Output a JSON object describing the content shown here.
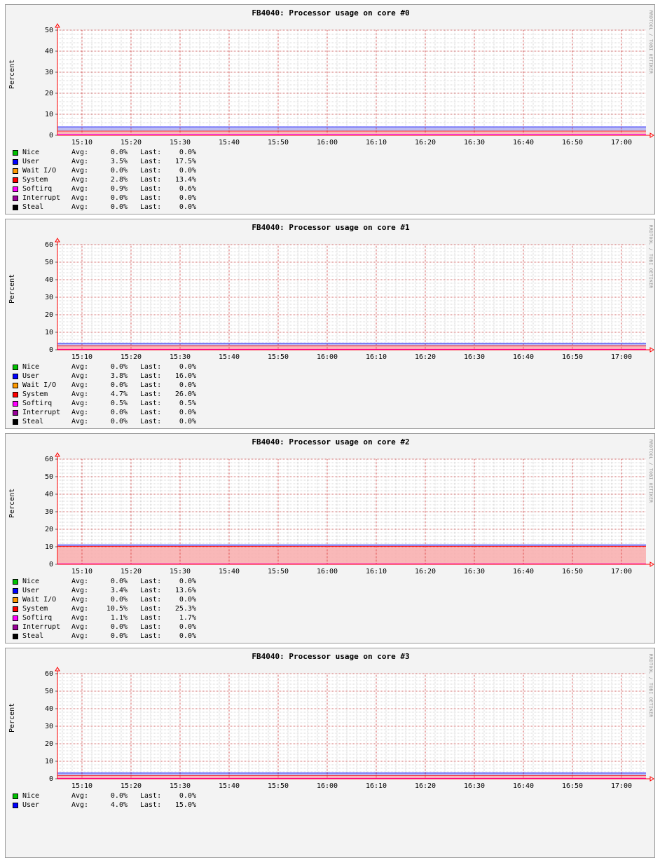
{
  "chart_data": [
    {
      "type": "area",
      "title": "FB4040: Processor usage on core #0",
      "ylabel": "Percent",
      "watermark": "RRDTOOL / TOBI OETIKER",
      "ylim": [
        0,
        50
      ],
      "yticks": [
        0,
        10,
        20,
        30,
        40,
        50
      ],
      "xticks": [
        "15:10",
        "15:20",
        "15:30",
        "15:40",
        "15:50",
        "16:00",
        "16:10",
        "16:20",
        "16:30",
        "16:40",
        "16:50",
        "17:00"
      ],
      "xrange_minutes": [
        905,
        1025
      ],
      "grid": true,
      "stacked_series": [
        "Softirq",
        "System",
        "User"
      ],
      "profiles": {
        "softirq": [
          [
            905,
            0.5
          ],
          [
            1020,
            0.5
          ],
          [
            1025,
            0.5
          ]
        ],
        "system": [
          [
            905,
            1.5
          ],
          [
            1020,
            1.5
          ],
          [
            1025,
            1.5
          ]
        ],
        "user": [
          [
            905,
            2
          ],
          [
            1020,
            2
          ],
          [
            1025,
            2
          ]
        ]
      },
      "series": [
        {
          "name": "Nice",
          "color": "#00c000",
          "avg": "0.0%",
          "last": "0.0%"
        },
        {
          "name": "User",
          "color": "#0000ff",
          "avg": "3.5%",
          "last": "17.5%"
        },
        {
          "name": "Wait I/O",
          "color": "#ff9900",
          "avg": "0.0%",
          "last": "0.0%"
        },
        {
          "name": "System",
          "color": "#ff0000",
          "avg": "2.8%",
          "last": "13.4%"
        },
        {
          "name": "Softirq",
          "color": "#ff00ff",
          "avg": "0.9%",
          "last": "0.6%"
        },
        {
          "name": "Interrupt",
          "color": "#990099",
          "avg": "0.0%",
          "last": "0.0%"
        },
        {
          "name": "Steal",
          "color": "#000000",
          "avg": "0.0%",
          "last": "0.0%"
        }
      ]
    },
    {
      "type": "area",
      "title": "FB4040: Processor usage on core #1",
      "ylabel": "Percent",
      "watermark": "RRDTOOL / TOBI OETIKER",
      "ylim": [
        0,
        60
      ],
      "yticks": [
        0,
        10,
        20,
        30,
        40,
        50,
        60
      ],
      "xticks": [
        "15:10",
        "15:20",
        "15:30",
        "15:40",
        "15:50",
        "16:00",
        "16:10",
        "16:20",
        "16:30",
        "16:40",
        "16:50",
        "17:00"
      ],
      "xrange_minutes": [
        905,
        1025
      ],
      "grid": true,
      "stacked_series": [
        "Softirq",
        "System",
        "User"
      ],
      "profiles": {
        "softirq": [
          [
            905,
            0.3
          ],
          [
            1020,
            0.3
          ],
          [
            1025,
            0.3
          ]
        ],
        "system": [
          [
            905,
            2
          ],
          [
            1020,
            2
          ],
          [
            1025,
            2
          ]
        ],
        "user": [
          [
            905,
            1.5
          ],
          [
            1020,
            1.5
          ],
          [
            1025,
            1.5
          ]
        ]
      },
      "series": [
        {
          "name": "Nice",
          "color": "#00c000",
          "avg": "0.0%",
          "last": "0.0%"
        },
        {
          "name": "User",
          "color": "#0000ff",
          "avg": "3.8%",
          "last": "16.0%"
        },
        {
          "name": "Wait I/O",
          "color": "#ff9900",
          "avg": "0.0%",
          "last": "0.0%"
        },
        {
          "name": "System",
          "color": "#ff0000",
          "avg": "4.7%",
          "last": "26.0%"
        },
        {
          "name": "Softirq",
          "color": "#ff00ff",
          "avg": "0.5%",
          "last": "0.5%"
        },
        {
          "name": "Interrupt",
          "color": "#990099",
          "avg": "0.0%",
          "last": "0.0%"
        },
        {
          "name": "Steal",
          "color": "#000000",
          "avg": "0.0%",
          "last": "0.0%"
        }
      ]
    },
    {
      "type": "area",
      "title": "FB4040: Processor usage on core #2",
      "ylabel": "Percent",
      "watermark": "RRDTOOL / TOBI OETIKER",
      "ylim": [
        0,
        60
      ],
      "yticks": [
        0,
        10,
        20,
        30,
        40,
        50,
        60
      ],
      "xticks": [
        "15:10",
        "15:20",
        "15:30",
        "15:40",
        "15:50",
        "16:00",
        "16:10",
        "16:20",
        "16:30",
        "16:40",
        "16:50",
        "17:00"
      ],
      "xrange_minutes": [
        905,
        1025
      ],
      "grid": true,
      "stacked_series": [
        "Softirq",
        "System",
        "User"
      ],
      "profiles": {
        "softirq": [
          [
            905,
            0.3
          ],
          [
            1020,
            0.3
          ],
          [
            1025,
            0.3
          ]
        ],
        "system": [
          [
            905,
            10
          ],
          [
            1020,
            10
          ],
          [
            1025,
            10
          ]
        ],
        "user": [
          [
            905,
            0.8
          ],
          [
            1020,
            0.8
          ],
          [
            1025,
            0.8
          ]
        ]
      },
      "series": [
        {
          "name": "Nice",
          "color": "#00c000",
          "avg": "0.0%",
          "last": "0.0%"
        },
        {
          "name": "User",
          "color": "#0000ff",
          "avg": "3.4%",
          "last": "13.6%"
        },
        {
          "name": "Wait I/O",
          "color": "#ff9900",
          "avg": "0.0%",
          "last": "0.0%"
        },
        {
          "name": "System",
          "color": "#ff0000",
          "avg": "10.5%",
          "last": "25.3%"
        },
        {
          "name": "Softirq",
          "color": "#ff00ff",
          "avg": "1.1%",
          "last": "1.7%"
        },
        {
          "name": "Interrupt",
          "color": "#990099",
          "avg": "0.0%",
          "last": "0.0%"
        },
        {
          "name": "Steal",
          "color": "#000000",
          "avg": "0.0%",
          "last": "0.0%"
        }
      ]
    },
    {
      "type": "area",
      "title": "FB4040: Processor usage on core #3",
      "ylabel": "Percent",
      "watermark": "RRDTOOL / TOBI OETIKER",
      "ylim": [
        0,
        60
      ],
      "yticks": [
        0,
        10,
        20,
        30,
        40,
        50,
        60
      ],
      "xticks": [
        "15:10",
        "15:20",
        "15:30",
        "15:40",
        "15:50",
        "16:00",
        "16:10",
        "16:20",
        "16:30",
        "16:40",
        "16:50",
        "17:00"
      ],
      "xrange_minutes": [
        905,
        1025
      ],
      "grid": true,
      "stacked_series": [
        "Softirq",
        "System",
        "User"
      ],
      "profiles": {
        "softirq": [
          [
            905,
            0.3
          ],
          [
            1020,
            0.3
          ],
          [
            1025,
            0.3
          ]
        ],
        "system": [
          [
            905,
            1.5
          ],
          [
            1020,
            1.5
          ],
          [
            1025,
            1.5
          ]
        ],
        "user": [
          [
            905,
            1.5
          ],
          [
            1020,
            1.5
          ],
          [
            1025,
            1.5
          ]
        ]
      },
      "series": [
        {
          "name": "Nice",
          "color": "#00c000",
          "avg": "0.0%",
          "last": "0.0%"
        },
        {
          "name": "User",
          "color": "#0000ff",
          "avg": "4.0%",
          "last": "15.0%"
        }
      ]
    }
  ],
  "legend_labels": {
    "avg": "Avg:",
    "last": "Last:"
  },
  "colors": {
    "user_fill": "#b0b0f0",
    "system_fill": "#f8b0b0",
    "softirq_fill": "#f090f0",
    "grid_minor": "#b0b0b0",
    "grid_major": "#cc0000",
    "axis": "#ff0000"
  }
}
